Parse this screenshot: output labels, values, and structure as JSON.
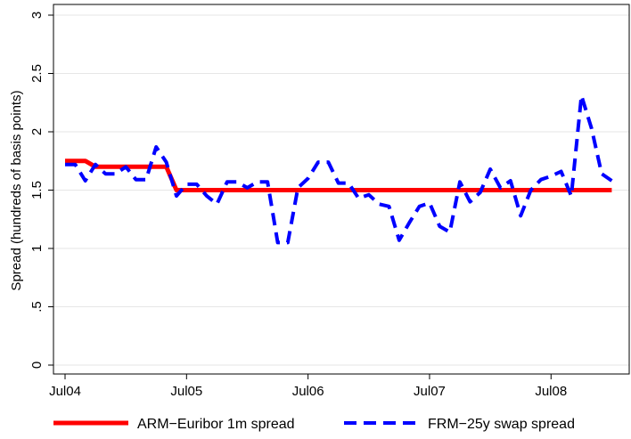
{
  "chart_data": {
    "type": "line",
    "title": "",
    "xlabel": "",
    "ylabel": "Spread (hundreds of basis points)",
    "x_tick_labels": [
      "Jul04",
      "Jul05",
      "Jul06",
      "Jul07",
      "Jul08"
    ],
    "y_tick_labels": [
      "0",
      ".5",
      "1",
      "1.5",
      "2",
      "2.5",
      "3"
    ],
    "y_ticks": [
      0,
      0.5,
      1,
      1.5,
      2,
      2.5,
      3
    ],
    "ylim": [
      0,
      3
    ],
    "grid": true,
    "legend_position": "bottom",
    "x": [
      "2004-07",
      "2004-08",
      "2004-09",
      "2004-10",
      "2004-11",
      "2004-12",
      "2005-01",
      "2005-02",
      "2005-03",
      "2005-04",
      "2005-05",
      "2005-06",
      "2005-07",
      "2005-08",
      "2005-09",
      "2005-10",
      "2005-11",
      "2005-12",
      "2006-01",
      "2006-02",
      "2006-03",
      "2006-04",
      "2006-05",
      "2006-06",
      "2006-07",
      "2006-08",
      "2006-09",
      "2006-10",
      "2006-11",
      "2006-12",
      "2007-01",
      "2007-02",
      "2007-03",
      "2007-04",
      "2007-05",
      "2007-06",
      "2007-07",
      "2007-08",
      "2007-09",
      "2007-10",
      "2007-11",
      "2007-12",
      "2008-01",
      "2008-02",
      "2008-03",
      "2008-04",
      "2008-05",
      "2008-06",
      "2008-07",
      "2008-08",
      "2008-09",
      "2008-10",
      "2008-11",
      "2008-12",
      "2009-01"
    ],
    "series": [
      {
        "name": "ARM−Euribor 1m spread",
        "color": "#ff0000",
        "style": "solid",
        "values": [
          1.75,
          1.75,
          1.75,
          1.7,
          1.7,
          1.7,
          1.7,
          1.7,
          1.7,
          1.7,
          1.7,
          1.5,
          1.5,
          1.5,
          1.5,
          1.5,
          1.5,
          1.5,
          1.5,
          1.5,
          1.5,
          1.5,
          1.5,
          1.5,
          1.5,
          1.5,
          1.5,
          1.5,
          1.5,
          1.5,
          1.5,
          1.5,
          1.5,
          1.5,
          1.5,
          1.5,
          1.5,
          1.5,
          1.5,
          1.5,
          1.5,
          1.5,
          1.5,
          1.5,
          1.5,
          1.5,
          1.5,
          1.5,
          1.5,
          1.5,
          1.5,
          1.5,
          1.5,
          1.5,
          1.5
        ]
      },
      {
        "name": "FRM−25y swap spread",
        "color": "#0000ff",
        "style": "dashed",
        "values": [
          1.72,
          1.72,
          1.58,
          1.72,
          1.64,
          1.64,
          1.7,
          1.59,
          1.59,
          1.87,
          1.74,
          1.45,
          1.55,
          1.55,
          1.45,
          1.38,
          1.57,
          1.57,
          1.52,
          1.57,
          1.57,
          1.05,
          1.05,
          1.52,
          1.6,
          1.74,
          1.74,
          1.56,
          1.56,
          1.43,
          1.46,
          1.38,
          1.36,
          1.07,
          1.22,
          1.36,
          1.39,
          1.19,
          1.14,
          1.57,
          1.4,
          1.48,
          1.68,
          1.52,
          1.58,
          1.28,
          1.5,
          1.59,
          1.62,
          1.66,
          1.45,
          2.31,
          2.03,
          1.64,
          1.58
        ]
      }
    ]
  }
}
